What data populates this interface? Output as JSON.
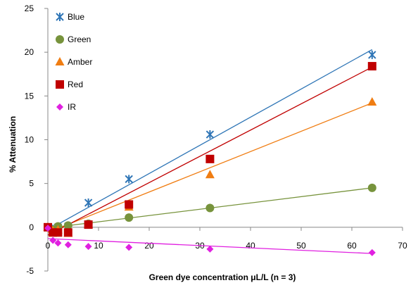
{
  "chart_data": {
    "type": "scatter",
    "xlabel": "Green dye concentration  μL/L  (n = 3)",
    "ylabel": "% Attenuation",
    "xlim": [
      0,
      70
    ],
    "ylim": [
      -5,
      25
    ],
    "xticks": [
      0,
      10,
      20,
      30,
      40,
      50,
      60,
      70
    ],
    "yticks": [
      -5,
      0,
      5,
      10,
      15,
      20,
      25
    ],
    "grid": false,
    "legend_position": "top-left",
    "series": [
      {
        "name": "Blue",
        "color": "#2e75b6",
        "marker": "asterisk",
        "x": [
          0,
          1,
          2,
          4,
          8,
          16,
          32,
          64
        ],
        "y": [
          0.0,
          -0.2,
          0.0,
          0.1,
          2.8,
          5.5,
          10.6,
          19.7
        ],
        "trendline": [
          [
            0,
            -0.3
          ],
          [
            64,
            20.3
          ]
        ]
      },
      {
        "name": "Green",
        "color": "#77933c",
        "marker": "circle",
        "x": [
          0,
          1,
          2,
          4,
          8,
          16,
          32,
          64
        ],
        "y": [
          0.0,
          -0.3,
          0.1,
          0.2,
          0.4,
          1.1,
          2.2,
          4.5
        ],
        "trendline": [
          [
            0,
            -0.1
          ],
          [
            64,
            4.5
          ]
        ]
      },
      {
        "name": "Amber",
        "color": "#f07d12",
        "marker": "triangle",
        "x": [
          0,
          1,
          2,
          4,
          8,
          16,
          32,
          64
        ],
        "y": [
          0.0,
          -0.4,
          -0.3,
          -0.7,
          0.3,
          2.3,
          6.0,
          14.3
        ],
        "trendline": [
          [
            0,
            -0.6
          ],
          [
            64,
            14.2
          ]
        ]
      },
      {
        "name": "Red",
        "color": "#c00000",
        "marker": "square",
        "x": [
          0,
          1,
          2,
          4,
          8,
          16,
          32,
          64
        ],
        "y": [
          0.0,
          -0.6,
          -0.6,
          -0.6,
          0.3,
          2.6,
          7.8,
          18.4
        ],
        "trendline": [
          [
            0,
            -0.9
          ],
          [
            64,
            18.3
          ]
        ]
      },
      {
        "name": "IR",
        "color": "#e020e0",
        "marker": "diamond",
        "x": [
          0,
          1,
          2,
          4,
          8,
          16,
          32,
          64
        ],
        "y": [
          -0.1,
          -1.5,
          -1.8,
          -2.0,
          -2.2,
          -2.3,
          -2.5,
          -2.9
        ],
        "trendline": [
          [
            0,
            -1.3
          ],
          [
            64,
            -3.0
          ]
        ]
      }
    ]
  }
}
